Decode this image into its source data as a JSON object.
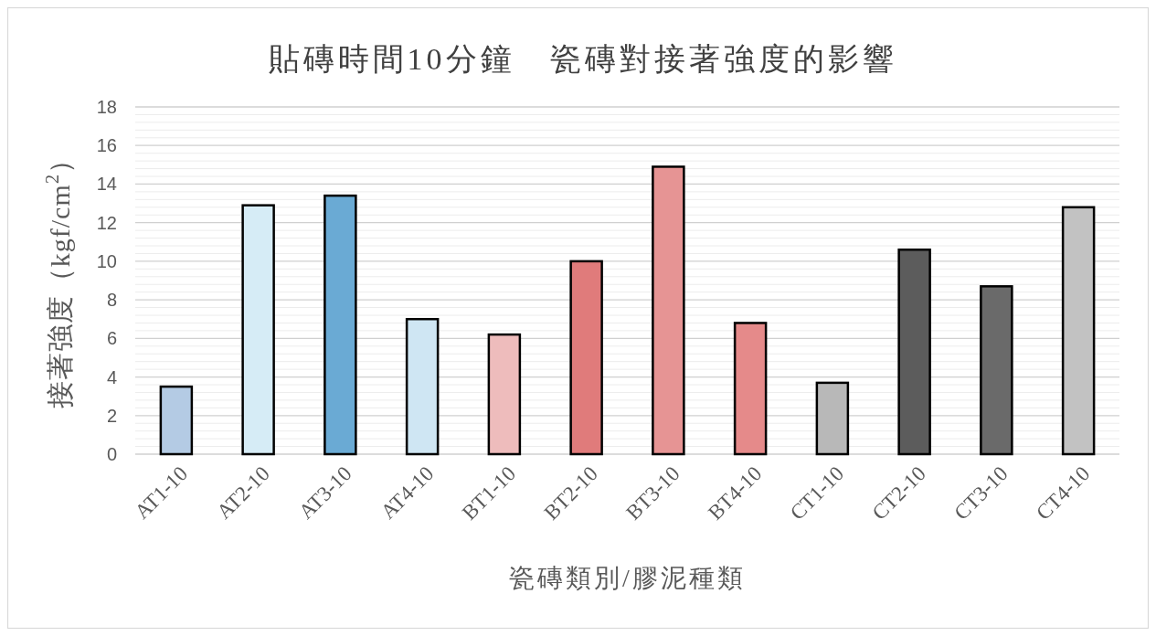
{
  "chart_data": {
    "type": "bar",
    "title": "貼磚時間10分鐘　瓷磚對接著強度的影響",
    "xlabel": "瓷磚類別/膠泥種類",
    "ylabel": "接著強度（kgf/cm$^{2}$）",
    "categories": [
      "AT1-10",
      "AT2-10",
      "AT3-10",
      "AT4-10",
      "BT1-10",
      "BT2-10",
      "BT3-10",
      "BT4-10",
      "CT1-10",
      "CT2-10",
      "CT3-10",
      "CT4-10"
    ],
    "values": [
      3.5,
      12.9,
      13.4,
      7.0,
      6.2,
      10.0,
      14.9,
      6.8,
      3.7,
      10.6,
      8.7,
      12.8
    ],
    "colors": [
      "#b4cbe4",
      "#d6ecf6",
      "#6aaad4",
      "#cfe6f3",
      "#eebcbc",
      "#e07b7b",
      "#e69494",
      "#e58a8a",
      "#b8b8b8",
      "#5c5c5c",
      "#6a6a6a",
      "#c2c2c2"
    ],
    "ylim": [
      0,
      18
    ],
    "yticks": [
      0,
      {
        "value": 0.4,
        "label": null
      },
      {
        "value": 0.8,
        "label": null
      },
      {
        "value": 1.2,
        "label": null
      },
      {
        "value": 1.6,
        "label": null
      },
      2,
      {
        "value": 2.4,
        "label": null
      },
      {
        "value": 2.8,
        "label": null
      },
      {
        "value": 3.2,
        "label": null
      },
      {
        "value": 3.6,
        "label": null
      },
      4,
      {
        "value": 4.4,
        "label": null
      },
      {
        "value": 4.8,
        "label": null
      },
      {
        "value": 5.2,
        "label": null
      },
      {
        "value": 5.6,
        "label": null
      },
      6,
      {
        "value": 6.4,
        "label": null
      },
      {
        "value": 6.8,
        "label": null
      },
      {
        "value": 7.2,
        "label": null
      },
      {
        "value": 7.6,
        "label": null
      },
      8,
      {
        "value": 8.4,
        "label": null
      },
      {
        "value": 8.8,
        "label": null
      },
      {
        "value": 9.2,
        "label": null
      },
      {
        "value": 9.6,
        "label": null
      },
      10,
      {
        "value": 10.4,
        "label": null
      },
      {
        "value": 10.8,
        "label": null
      },
      {
        "value": 11.2,
        "label": null
      },
      {
        "value": 11.6,
        "label": null
      },
      12,
      {
        "value": 12.4,
        "label": null
      },
      {
        "value": 12.8,
        "label": null
      },
      {
        "value": 13.2,
        "label": null
      },
      {
        "value": 13.6,
        "label": null
      },
      14,
      {
        "value": 14.4,
        "label": null
      },
      {
        "value": 14.8,
        "label": null
      },
      {
        "value": 15.2,
        "label": null
      },
      {
        "value": 15.6,
        "label": null
      },
      16,
      {
        "value": 16.4,
        "label": null
      },
      {
        "value": 16.8,
        "label": null
      },
      {
        "value": 17.2,
        "label": null
      },
      {
        "value": 17.6,
        "label": null
      },
      18
    ],
    "grid": "y"
  }
}
